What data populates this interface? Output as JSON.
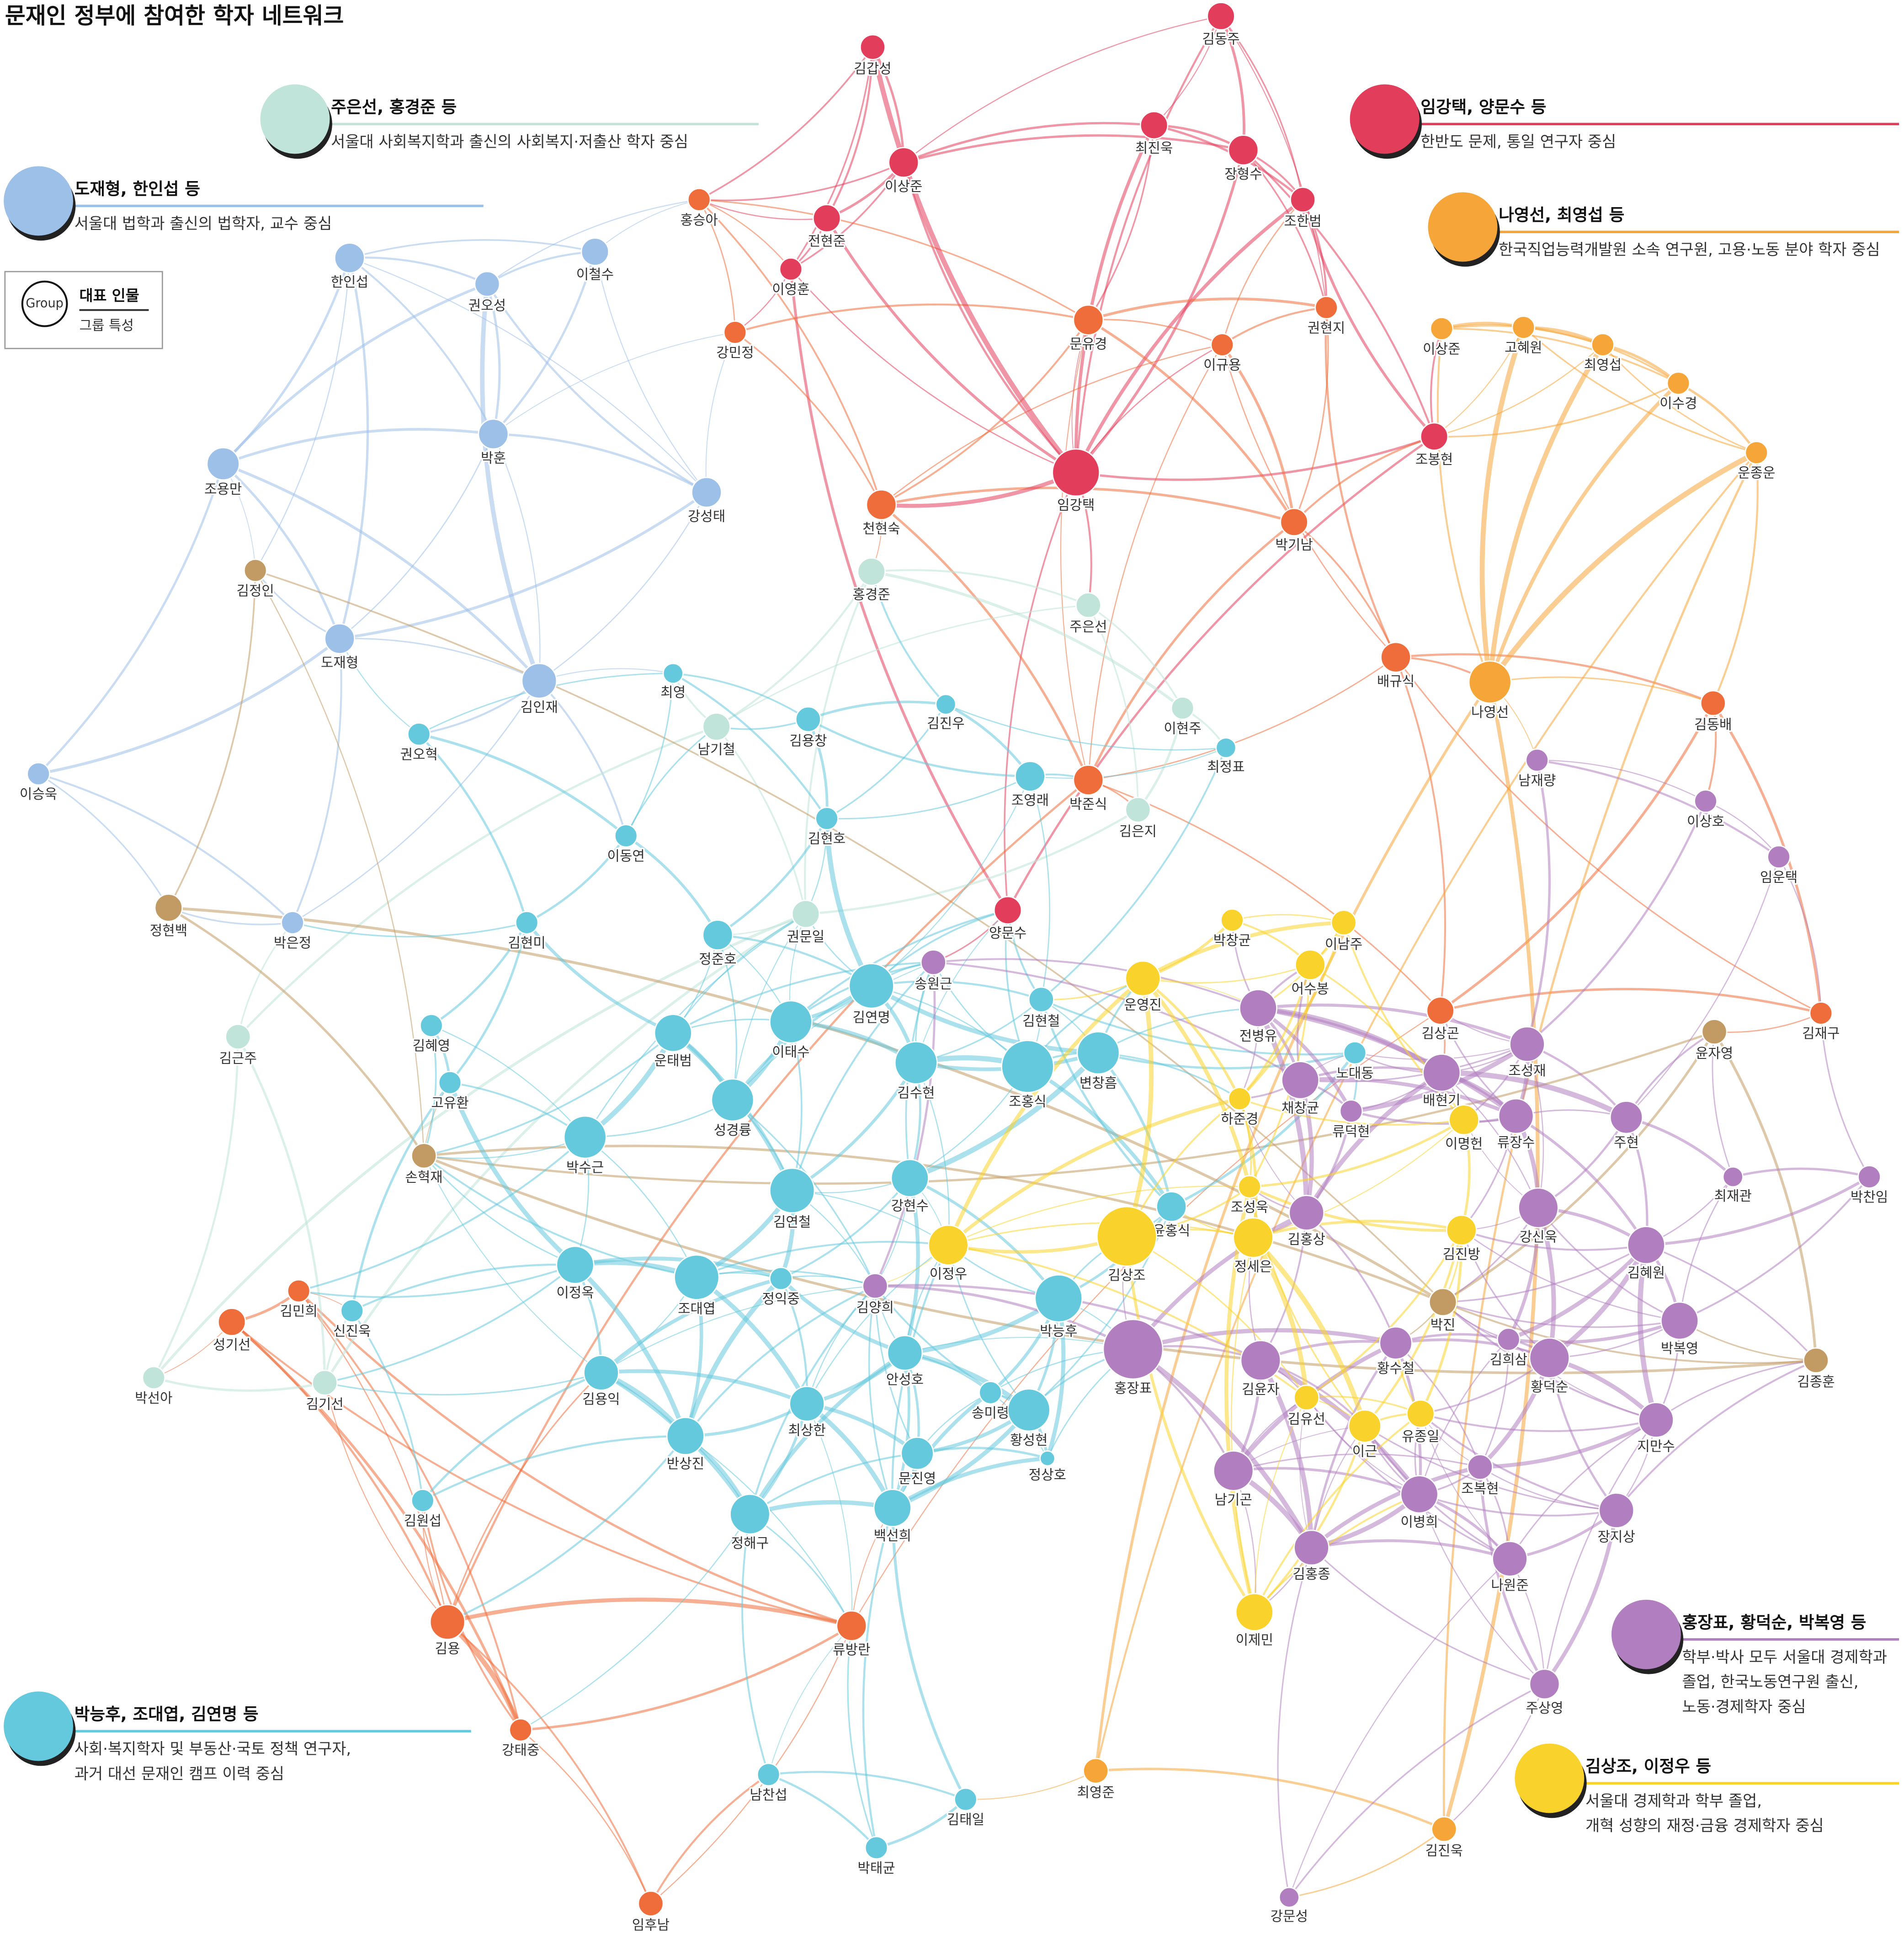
{
  "title": "문재인 정부에 참여한 학자 네트워크",
  "key": {
    "marker": "Group",
    "title": "대표 인물",
    "description": "그룹 특성"
  },
  "groups": [
    {
      "title": "주은선, 홍경준 등",
      "description": [
        "서울대 사회복지학과 출신의 사회복지·저출산 학자 중심"
      ],
      "color": "#c0e4d9"
    },
    {
      "title": "임강택, 양문수 등",
      "description": [
        "한반도 문제, 통일 연구자 중심"
      ],
      "color": "#e23e5c"
    },
    {
      "title": "도재형, 한인섭 등",
      "description": [
        "서울대 법학과 출신의 법학자, 교수 중심"
      ],
      "color": "#9cc0e8"
    },
    {
      "title": "나영선, 최영섭 등",
      "description": [
        "한국직업능력개발원 소속 연구원, 고용·노동 분야 학자 중심"
      ],
      "color": "#f6a638"
    },
    {
      "title": "홍장표, 황덕순, 박복영 등",
      "description": [
        "학부·박사 모두 서울대 경제학과",
        "졸업, 한국노동연구원 출신,",
        "노동·경제학자 중심"
      ],
      "color": "#b17fbf"
    },
    {
      "title": "박능후, 조대엽, 김연명 등",
      "description": [
        "사회·복지학자 및 부동산·국토 정책 연구자,",
        "과거 대선 문재인 캠프 이력 중심"
      ],
      "color": "#64c9dd"
    },
    {
      "title": "김상조, 이정우 등",
      "description": [
        "서울대 경제학과 학부 졸업,",
        "개혁 성향의 재정·금융 경제학자 중심"
      ],
      "color": "#f9d32b"
    }
  ],
  "nodes": [
    {
      "label": "김동주",
      "color": "#e23e5c"
    },
    {
      "label": "김갑성",
      "color": "#e23e5c"
    },
    {
      "label": "최진욱",
      "color": "#e23e5c"
    },
    {
      "label": "이상준",
      "color": "#e23e5c"
    },
    {
      "label": "장형수",
      "color": "#e23e5c"
    },
    {
      "label": "조한범",
      "color": "#e23e5c"
    },
    {
      "label": "전현준",
      "color": "#e23e5c"
    },
    {
      "label": "이영훈",
      "color": "#e23e5c"
    },
    {
      "label": "조봉현",
      "color": "#e23e5c"
    },
    {
      "label": "임강택",
      "color": "#e23e5c"
    },
    {
      "label": "양문수",
      "color": "#e23e5c"
    },
    {
      "label": "홍승아",
      "color": "#ef6d3b"
    },
    {
      "label": "강민정",
      "color": "#ef6d3b"
    },
    {
      "label": "문유경",
      "color": "#ef6d3b"
    },
    {
      "label": "이규용",
      "color": "#ef6d3b"
    },
    {
      "label": "권현지",
      "color": "#ef6d3b"
    },
    {
      "label": "천현숙",
      "color": "#ef6d3b"
    },
    {
      "label": "박기남",
      "color": "#ef6d3b"
    },
    {
      "label": "배규식",
      "color": "#ef6d3b"
    },
    {
      "label": "김동배",
      "color": "#ef6d3b"
    },
    {
      "label": "박준식",
      "color": "#ef6d3b"
    },
    {
      "label": "김상곤",
      "color": "#ef6d3b"
    },
    {
      "label": "김재구",
      "color": "#ef6d3b"
    },
    {
      "label": "김민희",
      "color": "#ef6d3b"
    },
    {
      "label": "성기선",
      "color": "#ef6d3b"
    },
    {
      "label": "김용",
      "color": "#ef6d3b"
    },
    {
      "label": "류방란",
      "color": "#ef6d3b"
    },
    {
      "label": "강태중",
      "color": "#ef6d3b"
    },
    {
      "label": "임후남",
      "color": "#ef6d3b"
    },
    {
      "label": "이상준",
      "color": "#f6a638"
    },
    {
      "label": "고혜원",
      "color": "#f6a638"
    },
    {
      "label": "최영섭",
      "color": "#f6a638"
    },
    {
      "label": "이수경",
      "color": "#f6a638"
    },
    {
      "label": "운종운",
      "color": "#f6a638"
    },
    {
      "label": "나영선",
      "color": "#f6a638"
    },
    {
      "label": "최영준",
      "color": "#f6a638"
    },
    {
      "label": "김진욱",
      "color": "#f6a638"
    },
    {
      "label": "한인섭",
      "color": "#9cc0e8"
    },
    {
      "label": "권오성",
      "color": "#9cc0e8"
    },
    {
      "label": "이철수",
      "color": "#9cc0e8"
    },
    {
      "label": "조용만",
      "color": "#9cc0e8"
    },
    {
      "label": "박훈",
      "color": "#9cc0e8"
    },
    {
      "label": "강성태",
      "color": "#9cc0e8"
    },
    {
      "label": "도재형",
      "color": "#9cc0e8"
    },
    {
      "label": "김인재",
      "color": "#9cc0e8"
    },
    {
      "label": "이승욱",
      "color": "#9cc0e8"
    },
    {
      "label": "박은정",
      "color": "#9cc0e8"
    },
    {
      "label": "홍경준",
      "color": "#c0e4d9"
    },
    {
      "label": "주은선",
      "color": "#c0e4d9"
    },
    {
      "label": "남기철",
      "color": "#c0e4d9"
    },
    {
      "label": "이현주",
      "color": "#c0e4d9"
    },
    {
      "label": "김은지",
      "color": "#c0e4d9"
    },
    {
      "label": "권문일",
      "color": "#c0e4d9"
    },
    {
      "label": "김근주",
      "color": "#c0e4d9"
    },
    {
      "label": "김기선",
      "color": "#c0e4d9"
    },
    {
      "label": "박선아",
      "color": "#c0e4d9"
    },
    {
      "label": "김정인",
      "color": "#c29a64"
    },
    {
      "label": "정현백",
      "color": "#c29a64"
    },
    {
      "label": "손혁재",
      "color": "#c29a64"
    },
    {
      "label": "윤자영",
      "color": "#c29a64"
    },
    {
      "label": "김종훈",
      "color": "#c29a64"
    },
    {
      "label": "박진",
      "color": "#c29a64"
    },
    {
      "label": "최영",
      "color": "#64c9dd"
    },
    {
      "label": "김용창",
      "color": "#64c9dd"
    },
    {
      "label": "김진우",
      "color": "#64c9dd"
    },
    {
      "label": "최정표",
      "color": "#64c9dd"
    },
    {
      "label": "권오혁",
      "color": "#64c9dd"
    },
    {
      "label": "조영래",
      "color": "#64c9dd"
    },
    {
      "label": "김현호",
      "color": "#64c9dd"
    },
    {
      "label": "이동연",
      "color": "#64c9dd"
    },
    {
      "label": "김현미",
      "color": "#64c9dd"
    },
    {
      "label": "정준호",
      "color": "#64c9dd"
    },
    {
      "label": "김연명",
      "color": "#64c9dd"
    },
    {
      "label": "운태범",
      "color": "#64c9dd"
    },
    {
      "label": "이태수",
      "color": "#64c9dd"
    },
    {
      "label": "김현철",
      "color": "#64c9dd"
    },
    {
      "label": "김수현",
      "color": "#64c9dd"
    },
    {
      "label": "조홍식",
      "color": "#64c9dd"
    },
    {
      "label": "변창흠",
      "color": "#64c9dd"
    },
    {
      "label": "김혜영",
      "color": "#64c9dd"
    },
    {
      "label": "고유환",
      "color": "#64c9dd"
    },
    {
      "label": "성경륭",
      "color": "#64c9dd"
    },
    {
      "label": "박수근",
      "color": "#64c9dd"
    },
    {
      "label": "강현수",
      "color": "#64c9dd"
    },
    {
      "label": "김연철",
      "color": "#64c9dd"
    },
    {
      "label": "노대동",
      "color": "#64c9dd"
    },
    {
      "label": "윤홍식",
      "color": "#64c9dd"
    },
    {
      "label": "이정옥",
      "color": "#64c9dd"
    },
    {
      "label": "조대엽",
      "color": "#64c9dd"
    },
    {
      "label": "정익중",
      "color": "#64c9dd"
    },
    {
      "label": "신진욱",
      "color": "#64c9dd"
    },
    {
      "label": "박능후",
      "color": "#64c9dd"
    },
    {
      "label": "김용익",
      "color": "#64c9dd"
    },
    {
      "label": "안성호",
      "color": "#64c9dd"
    },
    {
      "label": "송미령",
      "color": "#64c9dd"
    },
    {
      "label": "최상한",
      "color": "#64c9dd"
    },
    {
      "label": "황성현",
      "color": "#64c9dd"
    },
    {
      "label": "반상진",
      "color": "#64c9dd"
    },
    {
      "label": "문진영",
      "color": "#64c9dd"
    },
    {
      "label": "정해구",
      "color": "#64c9dd"
    },
    {
      "label": "백선희",
      "color": "#64c9dd"
    },
    {
      "label": "김원섭",
      "color": "#64c9dd"
    },
    {
      "label": "남찬섭",
      "color": "#64c9dd"
    },
    {
      "label": "김태일",
      "color": "#64c9dd"
    },
    {
      "label": "박태균",
      "color": "#64c9dd"
    },
    {
      "label": "정상호",
      "color": "#64c9dd"
    },
    {
      "label": "남재량",
      "color": "#b17fbf"
    },
    {
      "label": "이상호",
      "color": "#b17fbf"
    },
    {
      "label": "임운택",
      "color": "#b17fbf"
    },
    {
      "label": "송원근",
      "color": "#b17fbf"
    },
    {
      "label": "전병유",
      "color": "#b17fbf"
    },
    {
      "label": "조성재",
      "color": "#b17fbf"
    },
    {
      "label": "채창균",
      "color": "#b17fbf"
    },
    {
      "label": "배현기",
      "color": "#b17fbf"
    },
    {
      "label": "류덕현",
      "color": "#b17fbf"
    },
    {
      "label": "류장수",
      "color": "#b17fbf"
    },
    {
      "label": "주현",
      "color": "#b17fbf"
    },
    {
      "label": "최재관",
      "color": "#b17fbf"
    },
    {
      "label": "박찬임",
      "color": "#b17fbf"
    },
    {
      "label": "김홍상",
      "color": "#b17fbf"
    },
    {
      "label": "강신욱",
      "color": "#b17fbf"
    },
    {
      "label": "김혜원",
      "color": "#b17fbf"
    },
    {
      "label": "김양희",
      "color": "#b17fbf"
    },
    {
      "label": "박복영",
      "color": "#b17fbf"
    },
    {
      "label": "홍장표",
      "color": "#b17fbf"
    },
    {
      "label": "김윤자",
      "color": "#b17fbf"
    },
    {
      "label": "황수철",
      "color": "#b17fbf"
    },
    {
      "label": "김희삼",
      "color": "#b17fbf"
    },
    {
      "label": "황덕순",
      "color": "#b17fbf"
    },
    {
      "label": "지만수",
      "color": "#b17fbf"
    },
    {
      "label": "남기곤",
      "color": "#b17fbf"
    },
    {
      "label": "조복현",
      "color": "#b17fbf"
    },
    {
      "label": "이병희",
      "color": "#b17fbf"
    },
    {
      "label": "장지상",
      "color": "#b17fbf"
    },
    {
      "label": "김홍종",
      "color": "#b17fbf"
    },
    {
      "label": "나원준",
      "color": "#b17fbf"
    },
    {
      "label": "주상영",
      "color": "#b17fbf"
    },
    {
      "label": "강문성",
      "color": "#b17fbf"
    },
    {
      "label": "박창균",
      "color": "#f9d32b"
    },
    {
      "label": "이남주",
      "color": "#f9d32b"
    },
    {
      "label": "어수봉",
      "color": "#f9d32b"
    },
    {
      "label": "운영진",
      "color": "#f9d32b"
    },
    {
      "label": "하준경",
      "color": "#f9d32b"
    },
    {
      "label": "이명헌",
      "color": "#f9d32b"
    },
    {
      "label": "조성욱",
      "color": "#f9d32b"
    },
    {
      "label": "김상조",
      "color": "#f9d32b"
    },
    {
      "label": "정세은",
      "color": "#f9d32b"
    },
    {
      "label": "이정우",
      "color": "#f9d32b"
    },
    {
      "label": "김진방",
      "color": "#f9d32b"
    },
    {
      "label": "김유선",
      "color": "#f9d32b"
    },
    {
      "label": "이근",
      "color": "#f9d32b"
    },
    {
      "label": "유종일",
      "color": "#f9d32b"
    },
    {
      "label": "이제민",
      "color": "#f9d32b"
    }
  ]
}
